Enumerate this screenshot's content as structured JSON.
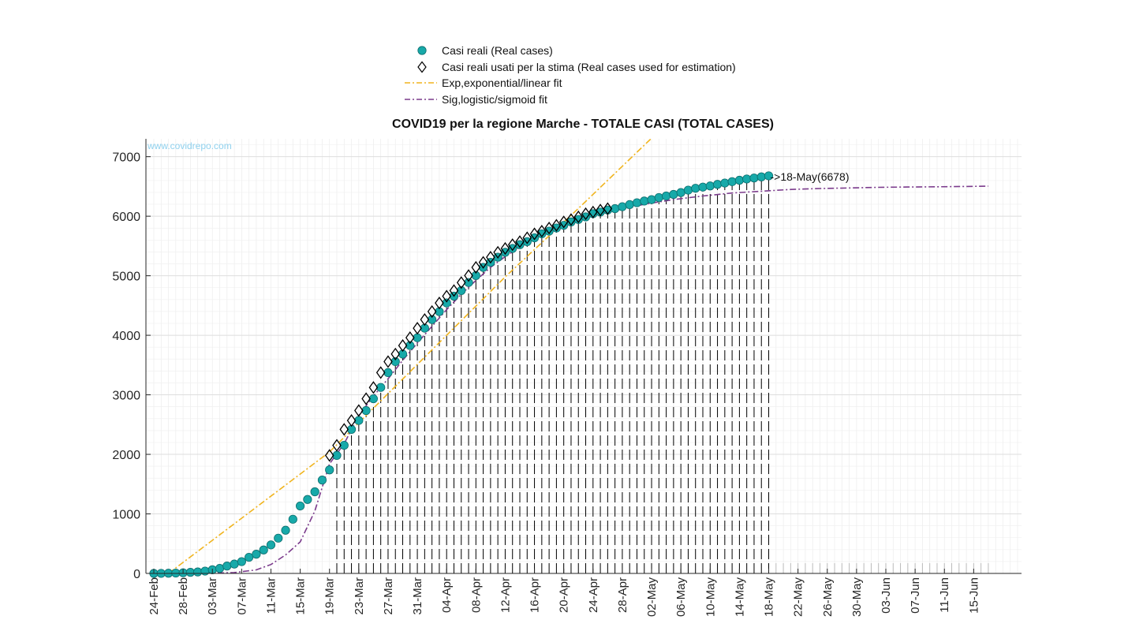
{
  "chart_data": {
    "type": "line",
    "title": "COVID19 per la regione Marche - TOTALE CASI (TOTAL CASES)",
    "watermark": "www.covidrepo.com",
    "xlabel": "",
    "ylabel": "",
    "ylim": [
      0,
      7300
    ],
    "yticks": [
      0,
      1000,
      2000,
      3000,
      4000,
      5000,
      6000,
      7000
    ],
    "grid": true,
    "legend_position": "top-center, outside",
    "x_start_date": "24-Feb",
    "xtick_labels": [
      "24-Feb",
      "28-Feb",
      "03-Mar",
      "07-Mar",
      "11-Mar",
      "15-Mar",
      "19-Mar",
      "23-Mar",
      "27-Mar",
      "31-Mar",
      "04-Apr",
      "08-Apr",
      "12-Apr",
      "16-Apr",
      "20-Apr",
      "24-Apr",
      "28-Apr",
      "02-May",
      "06-May",
      "10-May",
      "14-May",
      "18-May",
      "22-May",
      "26-May",
      "30-May",
      "03-Jun",
      "07-Jun",
      "11-Jun",
      "15-Jun"
    ],
    "annotation": {
      "text": "->18-May(6678)",
      "date": "18-May",
      "value": 6678
    },
    "series": [
      {
        "name": "Casi reali (Real cases)",
        "marker": "circle",
        "color": "#17a9a9",
        "x": [
          "24-Feb",
          "25-Feb",
          "26-Feb",
          "27-Feb",
          "28-Feb",
          "29-Feb",
          "01-Mar",
          "02-Mar",
          "03-Mar",
          "04-Mar",
          "05-Mar",
          "06-Mar",
          "07-Mar",
          "08-Mar",
          "09-Mar",
          "10-Mar",
          "11-Mar",
          "12-Mar",
          "13-Mar",
          "14-Mar",
          "15-Mar",
          "16-Mar",
          "17-Mar",
          "18-Mar",
          "19-Mar",
          "20-Mar",
          "21-Mar",
          "22-Mar",
          "23-Mar",
          "24-Mar",
          "25-Mar",
          "26-Mar",
          "27-Mar",
          "28-Mar",
          "29-Mar",
          "30-Mar",
          "31-Mar",
          "01-Apr",
          "02-Apr",
          "03-Apr",
          "04-Apr",
          "05-Apr",
          "06-Apr",
          "07-Apr",
          "08-Apr",
          "09-Apr",
          "10-Apr",
          "11-Apr",
          "12-Apr",
          "13-Apr",
          "14-Apr",
          "15-Apr",
          "16-Apr",
          "17-Apr",
          "18-Apr",
          "19-Apr",
          "20-Apr",
          "21-Apr",
          "22-Apr",
          "23-Apr",
          "24-Apr",
          "25-Apr",
          "26-Apr",
          "27-Apr",
          "28-Apr",
          "29-Apr",
          "30-Apr",
          "01-May",
          "02-May",
          "03-May",
          "04-May",
          "05-May",
          "06-May",
          "07-May",
          "08-May",
          "09-May",
          "10-May",
          "11-May",
          "12-May",
          "13-May",
          "14-May",
          "15-May",
          "16-May",
          "17-May",
          "18-May"
        ],
        "values": [
          0,
          1,
          3,
          6,
          11,
          18,
          25,
          39,
          61,
          84,
          124,
          157,
          198,
          271,
          323,
          394,
          479,
          592,
          725,
          910,
          1133,
          1242,
          1371,
          1568,
          1739,
          1982,
          2152,
          2419,
          2569,
          2736,
          2934,
          3124,
          3373,
          3558,
          3684,
          3828,
          3959,
          4119,
          4264,
          4398,
          4543,
          4657,
          4751,
          4886,
          5003,
          5140,
          5225,
          5311,
          5394,
          5458,
          5521,
          5573,
          5637,
          5704,
          5749,
          5802,
          5847,
          5904,
          5944,
          5988,
          6042,
          6069,
          6103,
          6127,
          6160,
          6195,
          6226,
          6255,
          6279,
          6314,
          6340,
          6366,
          6397,
          6438,
          6469,
          6489,
          6508,
          6535,
          6557,
          6580,
          6604,
          6625,
          6642,
          6661,
          6678
        ]
      },
      {
        "name": "Casi reali usati per la stima (Real cases used for estimation)",
        "marker": "diamond",
        "color": "#000000",
        "x": [
          "19-Mar",
          "20-Mar",
          "21-Mar",
          "22-Mar",
          "23-Mar",
          "24-Mar",
          "25-Mar",
          "26-Mar",
          "27-Mar",
          "28-Mar",
          "29-Mar",
          "30-Mar",
          "31-Mar",
          "01-Apr",
          "02-Apr",
          "03-Apr",
          "04-Apr",
          "05-Apr",
          "06-Apr",
          "07-Apr",
          "08-Apr",
          "09-Apr",
          "10-Apr",
          "11-Apr",
          "12-Apr",
          "13-Apr",
          "14-Apr",
          "15-Apr",
          "16-Apr",
          "17-Apr",
          "18-Apr",
          "19-Apr",
          "20-Apr",
          "21-Apr",
          "22-Apr",
          "23-Apr",
          "24-Apr",
          "25-Apr",
          "26-Apr"
        ],
        "values": [
          1982,
          2152,
          2419,
          2569,
          2736,
          2934,
          3124,
          3373,
          3558,
          3684,
          3828,
          3959,
          4119,
          4264,
          4398,
          4543,
          4657,
          4751,
          4886,
          5003,
          5140,
          5225,
          5311,
          5394,
          5458,
          5521,
          5573,
          5637,
          5704,
          5749,
          5802,
          5847,
          5904,
          5944,
          5988,
          6042,
          6069,
          6103,
          6127
        ]
      },
      {
        "name": "Exp,exponential/linear fit",
        "line": "dash-dot",
        "color": "#f0b41e",
        "x": [
          "26-Feb",
          "19-Mar",
          "12-Apr",
          "22-Apr",
          "02-May"
        ],
        "values": [
          0,
          2040,
          4980,
          6130,
          7310
        ]
      },
      {
        "name": "Sig,logistic/sigmoid fit",
        "line": "dash-dot",
        "color": "#7b3b8c",
        "x": [
          "02-Mar",
          "06-Mar",
          "09-Mar",
          "11-Mar",
          "13-Mar",
          "15-Mar",
          "17-Mar",
          "19-Mar",
          "21-Mar",
          "23-Mar",
          "25-Mar",
          "27-Mar",
          "29-Mar",
          "31-Mar",
          "02-Apr",
          "04-Apr",
          "06-Apr",
          "08-Apr",
          "10-Apr",
          "12-Apr",
          "14-Apr",
          "16-Apr",
          "18-Apr",
          "20-Apr",
          "22-Apr",
          "24-Apr",
          "26-Apr",
          "28-Apr",
          "01-May",
          "05-May",
          "09-May",
          "13-May",
          "17-May",
          "21-May",
          "25-May",
          "29-May",
          "02-Jun",
          "06-Jun",
          "10-Jun",
          "14-Jun",
          "17-Jun"
        ],
        "values": [
          0,
          15,
          60,
          150,
          310,
          530,
          1050,
          1840,
          2180,
          2650,
          2980,
          3270,
          3580,
          3870,
          4150,
          4430,
          4690,
          4920,
          5140,
          5320,
          5480,
          5620,
          5740,
          5840,
          5930,
          6000,
          6070,
          6120,
          6200,
          6280,
          6340,
          6390,
          6420,
          6450,
          6465,
          6475,
          6485,
          6490,
          6495,
          6500,
          6505
        ]
      },
      {
        "name": "",
        "line": "dashed-vertical",
        "color": "#000000",
        "x_start": "20-Mar",
        "x_end": "18-May",
        "note": "vertical dashed drop lines for daily cumulative values"
      }
    ]
  },
  "legend_items": [
    {
      "key": "real",
      "label": "Casi reali (Real cases)"
    },
    {
      "key": "used",
      "label": "Casi reali usati per la stima (Real cases used for estimation)"
    },
    {
      "key": "exp",
      "label": "Exp,exponential/linear fit"
    },
    {
      "key": "sig",
      "label": "Sig,logistic/sigmoid fit"
    }
  ]
}
